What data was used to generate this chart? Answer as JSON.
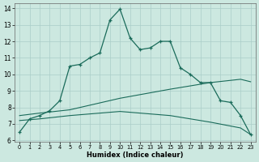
{
  "title": "",
  "xlabel": "Humidex (Indice chaleur)",
  "background_color": "#cce8e0",
  "grid_color": "#aacec8",
  "line_color": "#1a6b5a",
  "xlim": [
    -0.5,
    23.5
  ],
  "ylim": [
    5.9,
    14.3
  ],
  "xticks": [
    0,
    1,
    2,
    3,
    4,
    5,
    6,
    7,
    8,
    9,
    10,
    11,
    12,
    13,
    14,
    15,
    16,
    17,
    18,
    19,
    20,
    21,
    22,
    23
  ],
  "yticks": [
    6,
    7,
    8,
    9,
    10,
    11,
    12,
    13,
    14
  ],
  "main_x": [
    0,
    1,
    2,
    3,
    4,
    5,
    6,
    7,
    8,
    9,
    10,
    11,
    12,
    13,
    14,
    15,
    16,
    17,
    18,
    19,
    20,
    21,
    22,
    23
  ],
  "main_y": [
    6.5,
    7.3,
    7.5,
    7.8,
    8.4,
    10.5,
    10.6,
    11.0,
    11.3,
    13.3,
    13.95,
    12.2,
    11.5,
    11.6,
    12.0,
    12.0,
    10.4,
    10.0,
    9.5,
    9.5,
    8.4,
    8.3,
    7.5,
    6.35
  ],
  "upper_x": [
    0,
    2,
    5,
    10,
    15,
    18,
    19,
    22,
    23
  ],
  "upper_y": [
    7.5,
    7.65,
    7.85,
    8.55,
    9.1,
    9.4,
    9.5,
    9.7,
    9.55
  ],
  "lower_x": [
    0,
    2,
    5,
    10,
    15,
    18,
    19,
    22,
    23
  ],
  "lower_y": [
    7.2,
    7.3,
    7.5,
    7.75,
    7.5,
    7.2,
    7.1,
    6.75,
    6.35
  ]
}
